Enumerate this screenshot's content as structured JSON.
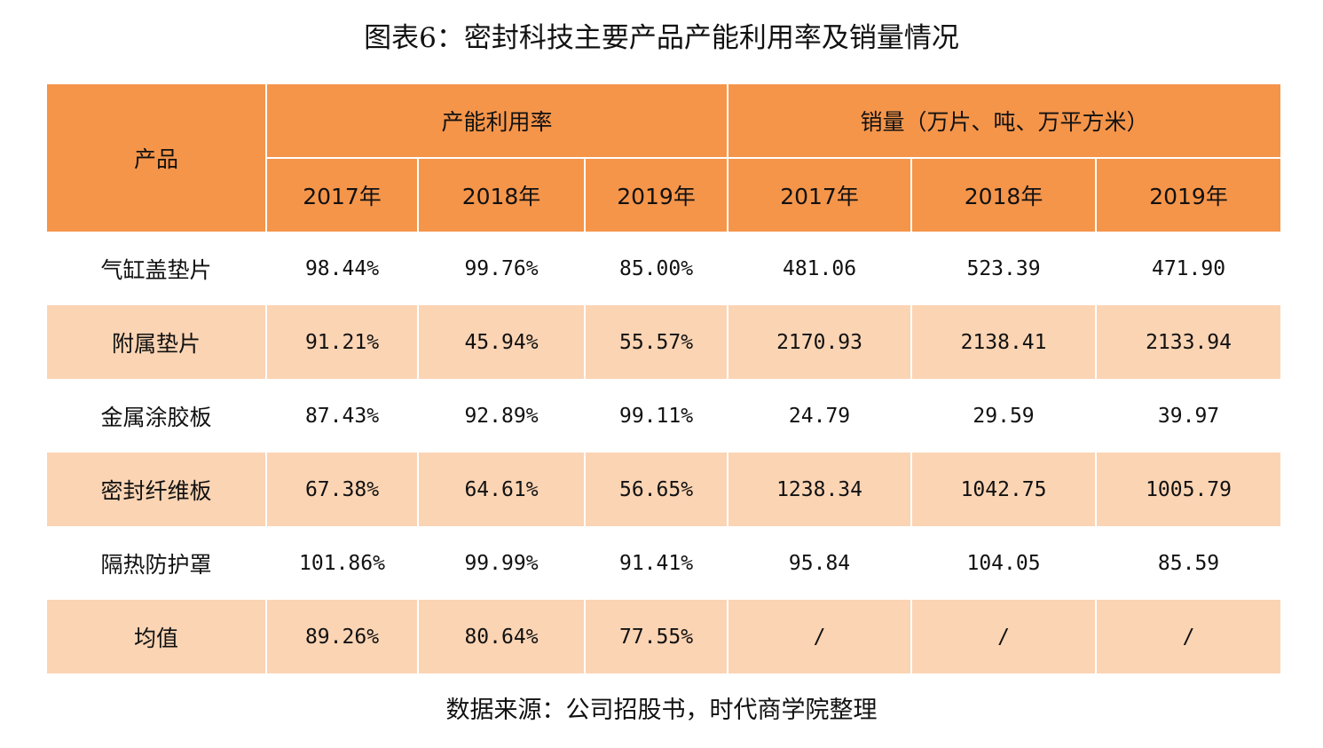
{
  "title": "图表6：密封科技主要产品产能利用率及销量情况",
  "colors": {
    "header_bg": "#f5954a",
    "shaded_row_bg": "#fbd4b4",
    "plain_row_bg": "#ffffff"
  },
  "table": {
    "header": {
      "product": "产品",
      "group_utilization": "产能利用率",
      "group_sales": "销量（万片、吨、万平方米）",
      "years": [
        "2017年",
        "2018年",
        "2019年",
        "2017年",
        "2018年",
        "2019年"
      ]
    },
    "rows": [
      {
        "name": "气缸盖垫片",
        "values": [
          "98.44%",
          "99.76%",
          "85.00%",
          "481.06",
          "523.39",
          "471.90"
        ]
      },
      {
        "name": "附属垫片",
        "values": [
          "91.21%",
          "45.94%",
          "55.57%",
          "2170.93",
          "2138.41",
          "2133.94"
        ]
      },
      {
        "name": "金属涂胶板",
        "values": [
          "87.43%",
          "92.89%",
          "99.11%",
          "24.79",
          "29.59",
          "39.97"
        ]
      },
      {
        "name": "密封纤维板",
        "values": [
          "67.38%",
          "64.61%",
          "56.65%",
          "1238.34",
          "1042.75",
          "1005.79"
        ]
      },
      {
        "name": "隔热防护罩",
        "values": [
          "101.86%",
          "99.99%",
          "91.41%",
          "95.84",
          "104.05",
          "85.59"
        ]
      },
      {
        "name": "均值",
        "values": [
          "89.26%",
          "80.64%",
          "77.55%",
          "/",
          "/",
          "/"
        ]
      }
    ]
  },
  "source": "数据来源：公司招股书，时代商学院整理"
}
